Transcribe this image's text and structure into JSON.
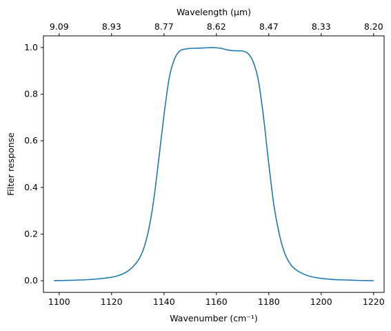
{
  "chart_data": {
    "type": "line",
    "title": "",
    "xlabel": "Wavenumber (cm⁻¹)",
    "ylabel": "Filter response",
    "top_xlabel": "Wavelength (μm)",
    "xlim": [
      1094,
      1224
    ],
    "ylim": [
      -0.05,
      1.05
    ],
    "x_ticks": [
      1100,
      1120,
      1140,
      1160,
      1180,
      1200,
      1220
    ],
    "y_ticks": [
      0.0,
      0.2,
      0.4,
      0.6,
      0.8,
      1.0
    ],
    "x_tick_labels": [
      "1100",
      "1120",
      "1140",
      "1160",
      "1180",
      "1200",
      "1220"
    ],
    "y_tick_labels": [
      "0.0",
      "0.2",
      "0.4",
      "0.6",
      "0.8",
      "1.0"
    ],
    "top_ticks": [
      {
        "at": 1100,
        "label": "9.09"
      },
      {
        "at": 1120,
        "label": "8.93"
      },
      {
        "at": 1140,
        "label": "8.77"
      },
      {
        "at": 1160,
        "label": "8.62"
      },
      {
        "at": 1180,
        "label": "8.47"
      },
      {
        "at": 1200,
        "label": "8.33"
      },
      {
        "at": 1220,
        "label": "8.20"
      }
    ],
    "grid": false,
    "legend": "none",
    "series": [
      {
        "color": "#1f77b4",
        "x": [
          1098,
          1105,
          1110,
          1115,
          1120,
          1124,
          1127,
          1130,
          1132,
          1134,
          1136,
          1138,
          1140,
          1142,
          1144,
          1146,
          1148,
          1150,
          1152,
          1155,
          1158,
          1160,
          1162,
          1164,
          1166,
          1168,
          1170,
          1172,
          1174,
          1176,
          1178,
          1180,
          1182,
          1184,
          1186,
          1188,
          1190,
          1193,
          1196,
          1200,
          1205,
          1210,
          1215,
          1220
        ],
        "y": [
          0.0,
          0.002,
          0.004,
          0.008,
          0.015,
          0.028,
          0.048,
          0.085,
          0.13,
          0.21,
          0.34,
          0.52,
          0.71,
          0.87,
          0.95,
          0.985,
          0.993,
          0.996,
          0.997,
          0.998,
          1.0,
          0.999,
          0.996,
          0.99,
          0.987,
          0.986,
          0.985,
          0.975,
          0.94,
          0.86,
          0.7,
          0.5,
          0.32,
          0.2,
          0.12,
          0.075,
          0.05,
          0.03,
          0.018,
          0.01,
          0.005,
          0.003,
          0.001,
          0.0
        ]
      }
    ]
  }
}
